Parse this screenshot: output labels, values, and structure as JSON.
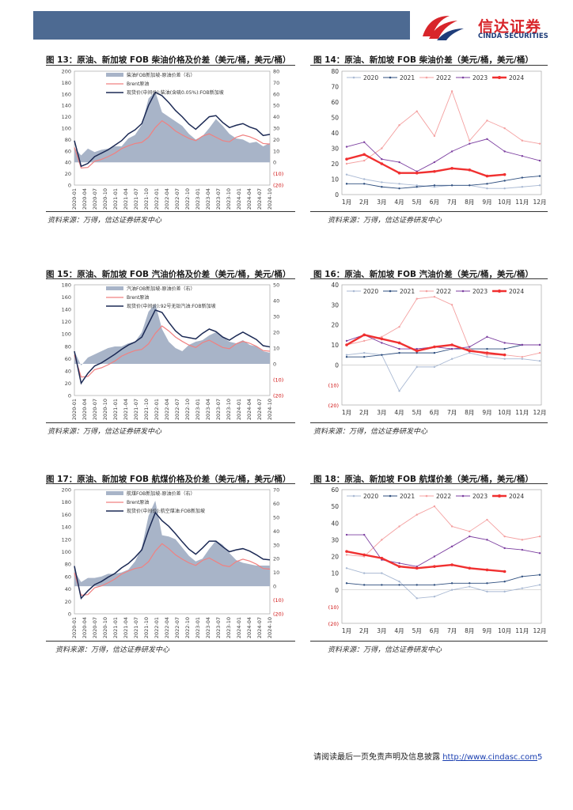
{
  "header": {
    "logo_cn": "信达证券",
    "logo_en": "CINDA SECURITIES"
  },
  "figures": [
    {
      "id": "fig13",
      "title": "图 13：原油、新加坡 FOB 柴油价格及价差（美元/桶，美元/桶）",
      "source": "资料来源：万得，信达证券研发中心"
    },
    {
      "id": "fig14",
      "title": "图 14：原油、新加坡 FOB 柴油价差（美元/桶，美元/桶）",
      "source": "资料来源：万得，信达证券研发中心"
    },
    {
      "id": "fig15",
      "title": "图 15：原油、新加坡 FOB 汽油价格及价差（美元/桶，美元/桶）",
      "source": "资料来源：万得，信达证券研发中心"
    },
    {
      "id": "fig16",
      "title": "图 16：原油、新加坡 FOB 汽油价差（美元/桶，美元/桶）",
      "source": "资料来源：万得，信达证券研发中心"
    },
    {
      "id": "fig17",
      "title": "图 17：原油、新加坡 FOB 航煤价格及价差（美元/桶，美元/桶）",
      "source": "资料来源：万得，信达证券研发中心"
    },
    {
      "id": "fig18",
      "title": "图 18：原油、新加坡 FOB 航煤价差（美元/桶，美元/桶）",
      "source": "资料来源：万得，信达证券研发中心"
    }
  ],
  "footer": {
    "text": "请阅读最后一页免责声明及信息披露 ",
    "link": "http://www.cindasc.com",
    "page": "5"
  },
  "colors": {
    "brent": "#f08080",
    "product": "#1c2a55",
    "spread": "#a8b4c8",
    "y2020": "#a9b9d3",
    "y2021": "#2f4f7f",
    "y2022": "#f4a0a0",
    "y2023": "#7c3fa0",
    "y2024": "#f03030",
    "axis_red": "#d01010"
  },
  "chart_data": [
    {
      "id": "fig13",
      "type": "area",
      "series": [
        {
          "name": "柴油FOB新加坡-原油价差（右）",
          "kind": "area",
          "axis": "right",
          "values": [
            13,
            6,
            12,
            9,
            11,
            12,
            14,
            14,
            21,
            24,
            33,
            56,
            62,
            44,
            40,
            36,
            32,
            25,
            20,
            23,
            30,
            38,
            32,
            25,
            21,
            20,
            17,
            18,
            14,
            17
          ]
        },
        {
          "name": "Brent原油",
          "kind": "line",
          "axis": "left",
          "values": [
            66,
            30,
            31,
            42,
            45,
            50,
            56,
            64,
            69,
            73,
            75,
            84,
            101,
            113,
            105,
            95,
            88,
            82,
            78,
            86,
            90,
            84,
            78,
            76,
            84,
            88,
            85,
            80,
            73,
            72
          ]
        },
        {
          "name": "现货价(中间价):柴油(含硫0.05%):FOB新加坡",
          "kind": "line",
          "axis": "left",
          "values": [
            78,
            33,
            38,
            50,
            56,
            62,
            70,
            78,
            90,
            97,
            108,
            140,
            163,
            157,
            145,
            131,
            120,
            107,
            98,
            109,
            120,
            122,
            110,
            101,
            105,
            108,
            102,
            98,
            87,
            89
          ]
        }
      ],
      "ylim_left": [
        0,
        200
      ],
      "ylim_right": [
        -20,
        80
      ],
      "left_ticks": [
        "200",
        "180",
        "160",
        "140",
        "120",
        "100",
        "80",
        "60",
        "40",
        "20",
        "0"
      ],
      "right_ticks": [
        "80",
        "70",
        "60",
        "50",
        "40",
        "30",
        "20",
        "10",
        "0",
        "(10)",
        "(20)"
      ],
      "x_ticks": [
        "2020-01",
        "2020-04",
        "2020-07",
        "2020-10",
        "2021-01",
        "2021-04",
        "2021-07",
        "2021-10",
        "2022-01",
        "2022-04",
        "2022-07",
        "2022-10",
        "2023-01",
        "2023-04",
        "2023-07",
        "2023-10",
        "2024-01",
        "2024-04",
        "2024-07",
        "2024-10"
      ]
    },
    {
      "id": "fig14",
      "type": "line",
      "categories": [
        "1月",
        "2月",
        "3月",
        "4月",
        "5月",
        "6月",
        "7月",
        "8月",
        "9月",
        "10月",
        "11月",
        "12月"
      ],
      "ylim": [
        0,
        80
      ],
      "y_ticks": [
        "80",
        "70",
        "60",
        "50",
        "40",
        "30",
        "20",
        "10",
        "0"
      ],
      "series": [
        {
          "name": "2020",
          "values": [
            13,
            10,
            8,
            7,
            6,
            5,
            6,
            6,
            4,
            4,
            5,
            6
          ]
        },
        {
          "name": "2021",
          "values": [
            7,
            7,
            5,
            4,
            5,
            6,
            6,
            6,
            7,
            9,
            11,
            12
          ]
        },
        {
          "name": "2022",
          "values": [
            20,
            22,
            30,
            45,
            54,
            38,
            67,
            35,
            48,
            43,
            35,
            33
          ]
        },
        {
          "name": "2023",
          "values": [
            31,
            34,
            23,
            21,
            15,
            21,
            28,
            33,
            36,
            28,
            25,
            22
          ]
        },
        {
          "name": "2024",
          "values": [
            23,
            26,
            20,
            14,
            14,
            15,
            17,
            16,
            12,
            13,
            null,
            null
          ]
        }
      ]
    },
    {
      "id": "fig15",
      "type": "area",
      "series": [
        {
          "name": "汽油FOB新加坡-原油价差（右）",
          "kind": "area",
          "axis": "right",
          "values": [
            8,
            -1,
            4,
            6,
            8,
            10,
            11,
            11,
            13,
            14,
            20,
            33,
            38,
            22,
            14,
            10,
            8,
            12,
            14,
            15,
            18,
            20,
            17,
            14,
            13,
            15,
            12,
            11,
            8,
            7
          ]
        },
        {
          "name": "Brent原油",
          "kind": "line",
          "axis": "left",
          "values": [
            66,
            30,
            31,
            42,
            45,
            50,
            56,
            64,
            69,
            73,
            75,
            84,
            101,
            113,
            105,
            95,
            88,
            82,
            78,
            86,
            90,
            84,
            78,
            76,
            84,
            88,
            85,
            80,
            73,
            72
          ]
        },
        {
          "name": "现货价(中间价):92号无铅汽油:FOB新加坡",
          "kind": "line",
          "axis": "left",
          "values": [
            72,
            20,
            36,
            48,
            53,
            60,
            67,
            75,
            82,
            87,
            95,
            117,
            139,
            135,
            119,
            105,
            96,
            94,
            92,
            101,
            108,
            104,
            95,
            90,
            97,
            103,
            97,
            91,
            81,
            79
          ]
        }
      ],
      "ylim_left": [
        0,
        180
      ],
      "ylim_right": [
        -20,
        50
      ],
      "left_ticks": [
        "180",
        "160",
        "140",
        "120",
        "100",
        "80",
        "60",
        "40",
        "20",
        "0"
      ],
      "right_ticks": [
        "50",
        "40",
        "30",
        "20",
        "10",
        "0",
        "(10)",
        "(20)"
      ],
      "x_ticks": [
        "2020-01",
        "2020-04",
        "2020-07",
        "2020-10",
        "2021-01",
        "2021-04",
        "2021-07",
        "2021-10",
        "2022-01",
        "2022-04",
        "2022-07",
        "2022-10",
        "2023-01",
        "2023-04",
        "2023-07",
        "2023-10",
        "2024-01",
        "2024-04",
        "2024-07",
        "2024-10"
      ]
    },
    {
      "id": "fig16",
      "type": "line",
      "categories": [
        "1月",
        "2月",
        "3月",
        "4月",
        "5月",
        "6月",
        "7月",
        "8月",
        "9月",
        "10月",
        "11月",
        "12月"
      ],
      "ylim": [
        -20,
        40
      ],
      "y_ticks": [
        "40",
        "30",
        "20",
        "10",
        "0",
        "(10)",
        "(20)"
      ],
      "series": [
        {
          "name": "2020",
          "values": [
            5,
            6,
            5,
            -13,
            -1,
            -1,
            3,
            6,
            4,
            3,
            3,
            2
          ]
        },
        {
          "name": "2021",
          "values": [
            4,
            4,
            5,
            6,
            6,
            6,
            8,
            8,
            8,
            8,
            10,
            10
          ]
        },
        {
          "name": "2022",
          "values": [
            10,
            12,
            14,
            19,
            33,
            34,
            30,
            8,
            5,
            5,
            4,
            6
          ]
        },
        {
          "name": "2023",
          "values": [
            12,
            15,
            11,
            8,
            8,
            9,
            8,
            9,
            14,
            11,
            10,
            10
          ]
        },
        {
          "name": "2024",
          "values": [
            10,
            15,
            13,
            11,
            7,
            9,
            10,
            7,
            6,
            5,
            null,
            null
          ]
        }
      ]
    },
    {
      "id": "fig17",
      "type": "area",
      "series": [
        {
          "name": "航煤FOB新加坡-原油价差（右）",
          "kind": "area",
          "axis": "right",
          "values": [
            11,
            3,
            6,
            6,
            7,
            9,
            9,
            10,
            12,
            18,
            28,
            51,
            62,
            37,
            36,
            34,
            28,
            22,
            18,
            20,
            27,
            33,
            30,
            24,
            19,
            17,
            16,
            15,
            15,
            15
          ]
        },
        {
          "name": "Brent原油",
          "kind": "line",
          "axis": "left",
          "values": [
            66,
            30,
            31,
            42,
            45,
            50,
            56,
            64,
            69,
            73,
            75,
            84,
            101,
            113,
            105,
            95,
            88,
            82,
            78,
            86,
            90,
            84,
            78,
            76,
            84,
            88,
            85,
            80,
            73,
            72
          ]
        },
        {
          "name": "现货价(中间价):航空煤油:FOB新加坡",
          "kind": "line",
          "axis": "left",
          "values": [
            77,
            25,
            37,
            47,
            52,
            59,
            65,
            74,
            81,
            91,
            103,
            135,
            163,
            150,
            141,
            129,
            116,
            104,
            96,
            106,
            117,
            117,
            108,
            100,
            103,
            105,
            101,
            95,
            88,
            87
          ]
        }
      ],
      "ylim_left": [
        0,
        200
      ],
      "ylim_right": [
        -20,
        70
      ],
      "left_ticks": [
        "200",
        "180",
        "160",
        "140",
        "120",
        "100",
        "80",
        "60",
        "40",
        "20",
        "0"
      ],
      "right_ticks": [
        "70",
        "60",
        "50",
        "40",
        "30",
        "20",
        "10",
        "0",
        "(10)",
        "(20)"
      ],
      "x_ticks": [
        "2020-01",
        "2020-04",
        "2020-07",
        "2020-10",
        "2021-01",
        "2021-04",
        "2021-07",
        "2021-10",
        "2022-01",
        "2022-04",
        "2022-07",
        "2022-10",
        "2023-01",
        "2023-04",
        "2023-07",
        "2023-10",
        "2024-01",
        "2024-04",
        "2024-07",
        "2024-10"
      ]
    },
    {
      "id": "fig18",
      "type": "line",
      "categories": [
        "1月",
        "2月",
        "3月",
        "4月",
        "5月",
        "6月",
        "7月",
        "8月",
        "9月",
        "10月",
        "11月",
        "12月"
      ],
      "ylim": [
        -20,
        60
      ],
      "y_ticks": [
        "60",
        "50",
        "40",
        "30",
        "20",
        "10",
        "0",
        "(10)",
        "(20)"
      ],
      "series": [
        {
          "name": "2020",
          "values": [
            13,
            10,
            10,
            5,
            -5,
            -4,
            0,
            2,
            -1,
            -1,
            1,
            3
          ]
        },
        {
          "name": "2021",
          "values": [
            4,
            3,
            3,
            3,
            3,
            3,
            4,
            4,
            4,
            5,
            8,
            9
          ]
        },
        {
          "name": "2022",
          "values": [
            21,
            20,
            30,
            38,
            45,
            50,
            38,
            35,
            42,
            32,
            30,
            32
          ]
        },
        {
          "name": "2023",
          "values": [
            33,
            33,
            18,
            16,
            14,
            20,
            26,
            32,
            30,
            25,
            24,
            22
          ]
        },
        {
          "name": "2024",
          "values": [
            23,
            21,
            19,
            14,
            13,
            14,
            15,
            13,
            12,
            11,
            null,
            null
          ]
        }
      ]
    }
  ]
}
